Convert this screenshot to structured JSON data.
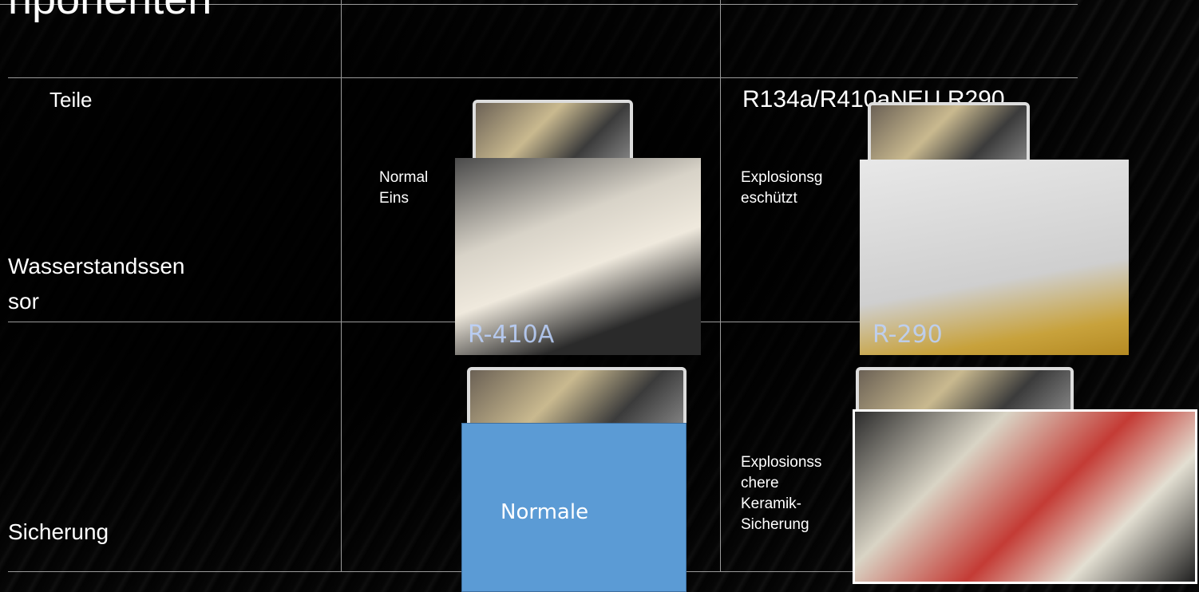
{
  "title": "nponenten",
  "table": {
    "header": [
      "Teile",
      null,
      "R134a/R410aNEU R290"
    ],
    "rows": [
      {
        "part": [
          "Wasserstandssen",
          "sor"
        ],
        "normal": [
          "Normal",
          "Eins"
        ],
        "normal_photo": "R-410A",
        "new": [
          "Explosionsg",
          "eschützt"
        ],
        "new_photo": "R-290"
      },
      {
        "part": [
          "Sicherung"
        ],
        "normal": "Normale",
        "new": [
          "Explosionss",
          "chere",
          "Keramik-",
          "Sicherung"
        ]
      }
    ]
  }
}
